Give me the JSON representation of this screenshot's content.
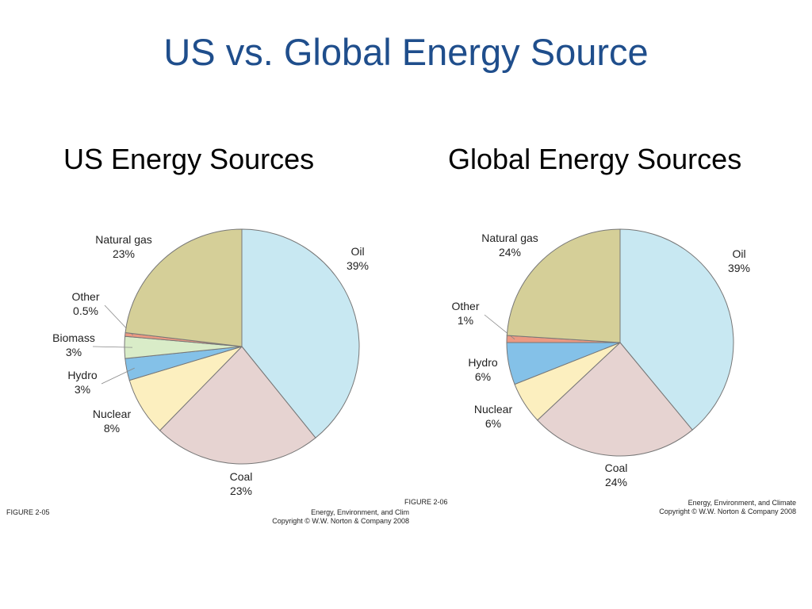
{
  "slide": {
    "title": "US vs. Global Energy Source"
  },
  "colors": {
    "title": "#1f4e8c",
    "oil": "#c8e8f2",
    "coal": "#e6d3d1",
    "nuclear": "#fcefbf",
    "hydro": "#84c1e8",
    "biomass": "#d9ecc8",
    "other": "#ec9982",
    "natural_gas": "#d5cf98",
    "outline": "#777777"
  },
  "chart_data": [
    {
      "type": "pie",
      "title": "US Energy Sources",
      "figure_label": "FIGURE 2-05",
      "credit": [
        "Energy, Environment, and Clim",
        "Copyright © W.W. Norton & Company 2008"
      ],
      "slices": [
        {
          "key": "oil",
          "name": "Oil",
          "value": 39,
          "label": "39%"
        },
        {
          "key": "coal",
          "name": "Coal",
          "value": 23,
          "label": "23%"
        },
        {
          "key": "nuclear",
          "name": "Nuclear",
          "value": 8,
          "label": "8%"
        },
        {
          "key": "hydro",
          "name": "Hydro",
          "value": 3,
          "label": "3%"
        },
        {
          "key": "biomass",
          "name": "Biomass",
          "value": 3,
          "label": "3%"
        },
        {
          "key": "other",
          "name": "Other",
          "value": 0.5,
          "label": "0.5%"
        },
        {
          "key": "natural_gas",
          "name": "Natural gas",
          "value": 23,
          "label": "23%"
        }
      ]
    },
    {
      "type": "pie",
      "title": "Global Energy Sources",
      "figure_label": "FIGURE 2-06",
      "credit": [
        "Energy, Environment, and Climate",
        "Copyright © W.W. Norton & Company 2008"
      ],
      "slices": [
        {
          "key": "oil",
          "name": "Oil",
          "value": 39,
          "label": "39%"
        },
        {
          "key": "coal",
          "name": "Coal",
          "value": 24,
          "label": "24%"
        },
        {
          "key": "nuclear",
          "name": "Nuclear",
          "value": 6,
          "label": "6%"
        },
        {
          "key": "hydro",
          "name": "Hydro",
          "value": 6,
          "label": "6%"
        },
        {
          "key": "other",
          "name": "Other",
          "value": 1,
          "label": "1%"
        },
        {
          "key": "natural_gas",
          "name": "Natural gas",
          "value": 24,
          "label": "24%"
        }
      ]
    }
  ]
}
